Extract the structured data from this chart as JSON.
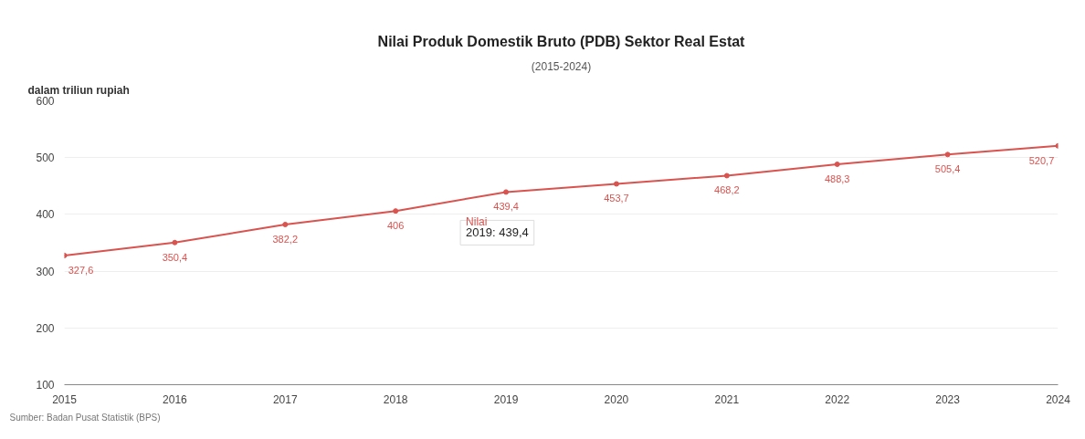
{
  "chart_data": {
    "type": "line",
    "title": "Nilai Produk Domestik Bruto (PDB) Sektor Real Estat",
    "subtitle": "(2015-2024)",
    "ylabel": "dalam triliun rupiah",
    "x": [
      2015,
      2016,
      2017,
      2018,
      2019,
      2020,
      2021,
      2022,
      2023,
      2024
    ],
    "series": [
      {
        "name": "Nilai",
        "color": "#d9534f",
        "values": [
          327.6,
          350.4,
          382.2,
          406,
          439.4,
          453.7,
          468.2,
          488.3,
          505.4,
          520.7
        ],
        "value_labels": [
          "327,6",
          "350,4",
          "382,2",
          "406",
          "439,4",
          "453,7",
          "468,2",
          "488,3",
          "505,4",
          "520,7"
        ]
      }
    ],
    "xlim": [
      2015,
      2024
    ],
    "xticks": [
      2015,
      2016,
      2017,
      2018,
      2019,
      2020,
      2021,
      2022,
      2023,
      2024
    ],
    "ylim": [
      100,
      600
    ],
    "yticks": [
      100,
      200,
      300,
      400,
      500,
      600
    ],
    "grid": "y",
    "marker": "circle",
    "line_style": "solid",
    "annotations": [
      {
        "text": "2019: 439,4",
        "x": 2019,
        "y": 439.4
      },
      "Sumber: Badan Pusat Statistik (BPS)"
    ]
  }
}
